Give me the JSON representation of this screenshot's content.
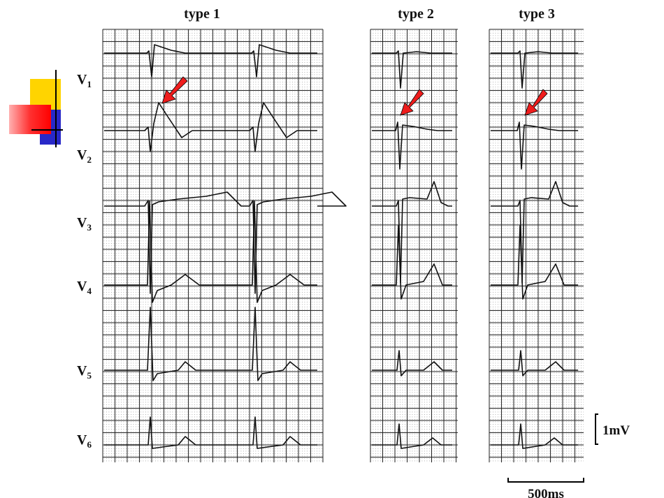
{
  "panels": [
    {
      "title": "type 1"
    },
    {
      "title": "type 2"
    },
    {
      "title": "type 3"
    }
  ],
  "leads": [
    {
      "letter": "V",
      "sub": "1"
    },
    {
      "letter": "V",
      "sub": "2"
    },
    {
      "letter": "V",
      "sub": "3"
    },
    {
      "letter": "V",
      "sub": "4"
    },
    {
      "letter": "V",
      "sub": "5"
    },
    {
      "letter": "V",
      "sub": "6"
    }
  ],
  "scale": {
    "voltage": "1mV",
    "time": "500ms"
  }
}
